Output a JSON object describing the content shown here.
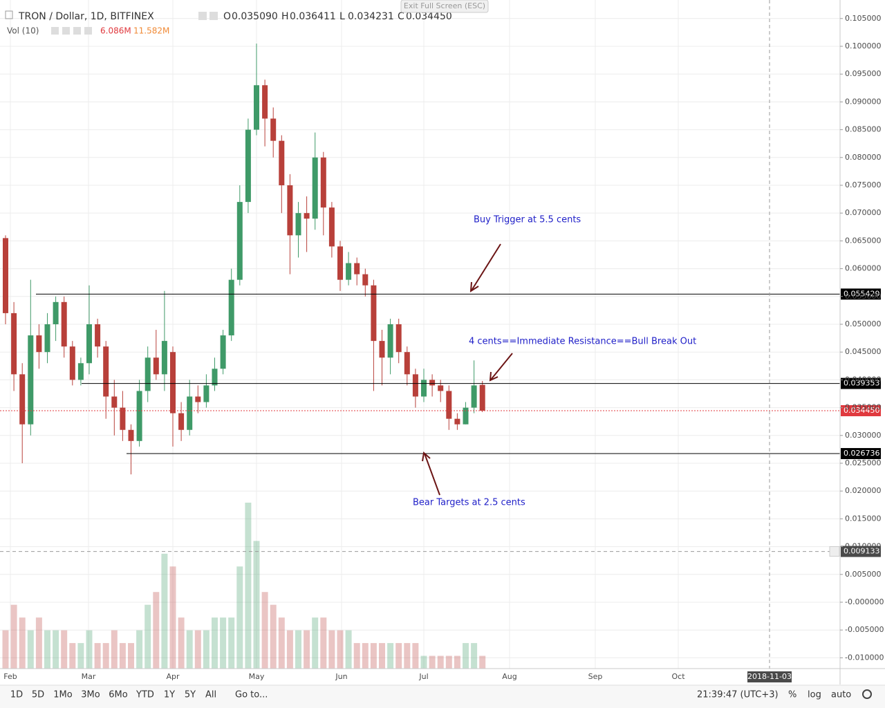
{
  "header": {
    "symbol": "TRON / Dollar, 1D, BITFINEX",
    "ohlc": [
      {
        "key": "O",
        "value": "0.035090"
      },
      {
        "key": "H",
        "value": "0.036411"
      },
      {
        "key": "L",
        "value": "0.034231"
      },
      {
        "key": "C",
        "value": "0.034450"
      }
    ],
    "volume_indicator": "Vol (10)",
    "volume": "6.086M",
    "volume_ma": "11.582M",
    "exit_fullscreen": "Exit Full Screen (ESC)"
  },
  "toolbar": {
    "ranges": [
      "1D",
      "5D",
      "1Mo",
      "3Mo",
      "6Mo",
      "YTD",
      "1Y",
      "5Y",
      "All"
    ],
    "goto": "Go to...",
    "time": "21:39:47 (UTC+3)",
    "percent": "%",
    "log": "log",
    "auto": "auto"
  },
  "chart_data": {
    "type": "candlestick",
    "up_color": "#3f9a68",
    "down_color": "#b8403a",
    "grid": true,
    "x_labels": [
      "Feb",
      "Mar",
      "Apr",
      "May",
      "Jun",
      "Jul",
      "Aug",
      "Sep",
      "Oct"
    ],
    "crosshair_date": "2018-11-03",
    "ylim": [
      -0.01194,
      0.10833
    ],
    "yticks": [
      {
        "value": 0.105,
        "label": "0.105000"
      },
      {
        "value": 0.1,
        "label": "0.100000"
      },
      {
        "value": 0.095,
        "label": "0.095000"
      },
      {
        "value": 0.09,
        "label": "0.090000"
      },
      {
        "value": 0.085,
        "label": "0.085000"
      },
      {
        "value": 0.08,
        "label": "0.080000"
      },
      {
        "value": 0.075,
        "label": "0.075000"
      },
      {
        "value": 0.07,
        "label": "0.070000"
      },
      {
        "value": 0.065,
        "label": "0.065000"
      },
      {
        "value": 0.06,
        "label": "0.060000"
      },
      {
        "value": 0.055,
        "label": "0.055000"
      },
      {
        "value": 0.05,
        "label": "0.050000"
      },
      {
        "value": 0.045,
        "label": "0.045000"
      },
      {
        "value": 0.04,
        "label": "0.040000"
      },
      {
        "value": 0.035,
        "label": "0.035000"
      },
      {
        "value": 0.03,
        "label": "0.030000"
      },
      {
        "value": 0.025,
        "label": "0.025000"
      },
      {
        "value": 0.02,
        "label": "0.020000"
      },
      {
        "value": 0.015,
        "label": "0.015000"
      },
      {
        "value": 0.01,
        "label": "0.010000"
      },
      {
        "value": 0.005,
        "label": "0.005000"
      },
      {
        "value": 0,
        "label": "-0.000000"
      },
      {
        "value": -0.005,
        "label": "-0.005000"
      },
      {
        "value": -0.01,
        "label": "-0.010000"
      }
    ],
    "levels": [
      {
        "value": 0.055429,
        "color": "#000000",
        "from": 52
      },
      {
        "value": 0.039353,
        "color": "#000000",
        "from": 118
      },
      {
        "value": 0.026736,
        "color": "#000000",
        "from": 183
      }
    ],
    "last_price": {
      "value": 0.03445,
      "label": "0.034450",
      "color": "#e0393e"
    },
    "crosshair_price": 0.009133,
    "annotations": [
      "Buy Trigger at 5.5 cents",
      "4 cents==Immediate Resistance==Bull Break Out",
      "Bear Targets at 2.5 cents"
    ],
    "candles": [
      {
        "open": 0.0655,
        "high": 0.066,
        "low": 0.05,
        "close": 0.052
      },
      {
        "open": 0.052,
        "high": 0.054,
        "low": 0.038,
        "close": 0.041
      },
      {
        "open": 0.041,
        "high": 0.043,
        "low": 0.025,
        "close": 0.032
      },
      {
        "open": 0.032,
        "high": 0.058,
        "low": 0.03,
        "close": 0.048
      },
      {
        "open": 0.048,
        "high": 0.05,
        "low": 0.042,
        "close": 0.045
      },
      {
        "open": 0.045,
        "high": 0.052,
        "low": 0.043,
        "close": 0.05
      },
      {
        "open": 0.05,
        "high": 0.055,
        "low": 0.047,
        "close": 0.054
      },
      {
        "open": 0.054,
        "high": 0.055,
        "low": 0.044,
        "close": 0.046
      },
      {
        "open": 0.046,
        "high": 0.047,
        "low": 0.039,
        "close": 0.04
      },
      {
        "open": 0.04,
        "high": 0.044,
        "low": 0.039,
        "close": 0.043
      },
      {
        "open": 0.043,
        "high": 0.057,
        "low": 0.041,
        "close": 0.05
      },
      {
        "open": 0.05,
        "high": 0.051,
        "low": 0.044,
        "close": 0.046
      },
      {
        "open": 0.046,
        "high": 0.047,
        "low": 0.033,
        "close": 0.037
      },
      {
        "open": 0.037,
        "high": 0.04,
        "low": 0.03,
        "close": 0.035
      },
      {
        "open": 0.035,
        "high": 0.038,
        "low": 0.029,
        "close": 0.031
      },
      {
        "open": 0.031,
        "high": 0.032,
        "low": 0.023,
        "close": 0.029
      },
      {
        "open": 0.029,
        "high": 0.04,
        "low": 0.028,
        "close": 0.038
      },
      {
        "open": 0.038,
        "high": 0.046,
        "low": 0.036,
        "close": 0.044
      },
      {
        "open": 0.044,
        "high": 0.049,
        "low": 0.04,
        "close": 0.041
      },
      {
        "open": 0.041,
        "high": 0.056,
        "low": 0.038,
        "close": 0.047
      },
      {
        "open": 0.045,
        "high": 0.046,
        "low": 0.028,
        "close": 0.034
      },
      {
        "open": 0.034,
        "high": 0.036,
        "low": 0.029,
        "close": 0.031
      },
      {
        "open": 0.031,
        "high": 0.04,
        "low": 0.03,
        "close": 0.037
      },
      {
        "open": 0.037,
        "high": 0.039,
        "low": 0.034,
        "close": 0.036
      },
      {
        "open": 0.036,
        "high": 0.041,
        "low": 0.035,
        "close": 0.039
      },
      {
        "open": 0.039,
        "high": 0.044,
        "low": 0.038,
        "close": 0.042
      },
      {
        "open": 0.042,
        "high": 0.049,
        "low": 0.041,
        "close": 0.048
      },
      {
        "open": 0.048,
        "high": 0.06,
        "low": 0.047,
        "close": 0.058
      },
      {
        "open": 0.058,
        "high": 0.075,
        "low": 0.057,
        "close": 0.072
      },
      {
        "open": 0.072,
        "high": 0.087,
        "low": 0.07,
        "close": 0.085
      },
      {
        "open": 0.085,
        "high": 0.1005,
        "low": 0.084,
        "close": 0.093
      },
      {
        "open": 0.093,
        "high": 0.094,
        "low": 0.082,
        "close": 0.087
      },
      {
        "open": 0.087,
        "high": 0.089,
        "low": 0.08,
        "close": 0.083
      },
      {
        "open": 0.083,
        "high": 0.084,
        "low": 0.07,
        "close": 0.075
      },
      {
        "open": 0.075,
        "high": 0.077,
        "low": 0.059,
        "close": 0.066
      },
      {
        "open": 0.066,
        "high": 0.072,
        "low": 0.062,
        "close": 0.07
      },
      {
        "open": 0.07,
        "high": 0.073,
        "low": 0.063,
        "close": 0.069
      },
      {
        "open": 0.069,
        "high": 0.0845,
        "low": 0.067,
        "close": 0.08
      },
      {
        "open": 0.08,
        "high": 0.081,
        "low": 0.066,
        "close": 0.071
      },
      {
        "open": 0.071,
        "high": 0.072,
        "low": 0.062,
        "close": 0.064
      },
      {
        "open": 0.064,
        "high": 0.065,
        "low": 0.056,
        "close": 0.058
      },
      {
        "open": 0.058,
        "high": 0.063,
        "low": 0.057,
        "close": 0.061
      },
      {
        "open": 0.061,
        "high": 0.062,
        "low": 0.057,
        "close": 0.059
      },
      {
        "open": 0.059,
        "high": 0.06,
        "low": 0.055,
        "close": 0.057
      },
      {
        "open": 0.057,
        "high": 0.058,
        "low": 0.038,
        "close": 0.047
      },
      {
        "open": 0.047,
        "high": 0.049,
        "low": 0.039,
        "close": 0.044
      },
      {
        "open": 0.044,
        "high": 0.051,
        "low": 0.041,
        "close": 0.05
      },
      {
        "open": 0.05,
        "high": 0.051,
        "low": 0.043,
        "close": 0.045
      },
      {
        "open": 0.045,
        "high": 0.046,
        "low": 0.039,
        "close": 0.041
      },
      {
        "open": 0.041,
        "high": 0.042,
        "low": 0.035,
        "close": 0.037
      },
      {
        "open": 0.037,
        "high": 0.042,
        "low": 0.036,
        "close": 0.04
      },
      {
        "open": 0.04,
        "high": 0.041,
        "low": 0.037,
        "close": 0.039
      },
      {
        "open": 0.039,
        "high": 0.04,
        "low": 0.036,
        "close": 0.038
      },
      {
        "open": 0.038,
        "high": 0.039,
        "low": 0.031,
        "close": 0.033
      },
      {
        "open": 0.033,
        "high": 0.034,
        "low": 0.031,
        "close": 0.032
      },
      {
        "open": 0.032,
        "high": 0.036,
        "low": 0.032,
        "close": 0.035
      },
      {
        "open": 0.035,
        "high": 0.0435,
        "low": 0.034,
        "close": 0.039
      },
      {
        "open": 0.0391,
        "high": 0.0398,
        "low": 0.0342,
        "close": 0.03445
      }
    ],
    "volumes": [
      3,
      5,
      4,
      3,
      4,
      3,
      3,
      3,
      2,
      2,
      3,
      2,
      2,
      3,
      2,
      2,
      3,
      5,
      6,
      9,
      8,
      4,
      3,
      3,
      3,
      4,
      4,
      4,
      8,
      13,
      10,
      6,
      5,
      4,
      3,
      3,
      3,
      4,
      4,
      3,
      3,
      3,
      2,
      2,
      2,
      2,
      2,
      2,
      2,
      2,
      1,
      1,
      1,
      1,
      1,
      2,
      2,
      1
    ]
  }
}
